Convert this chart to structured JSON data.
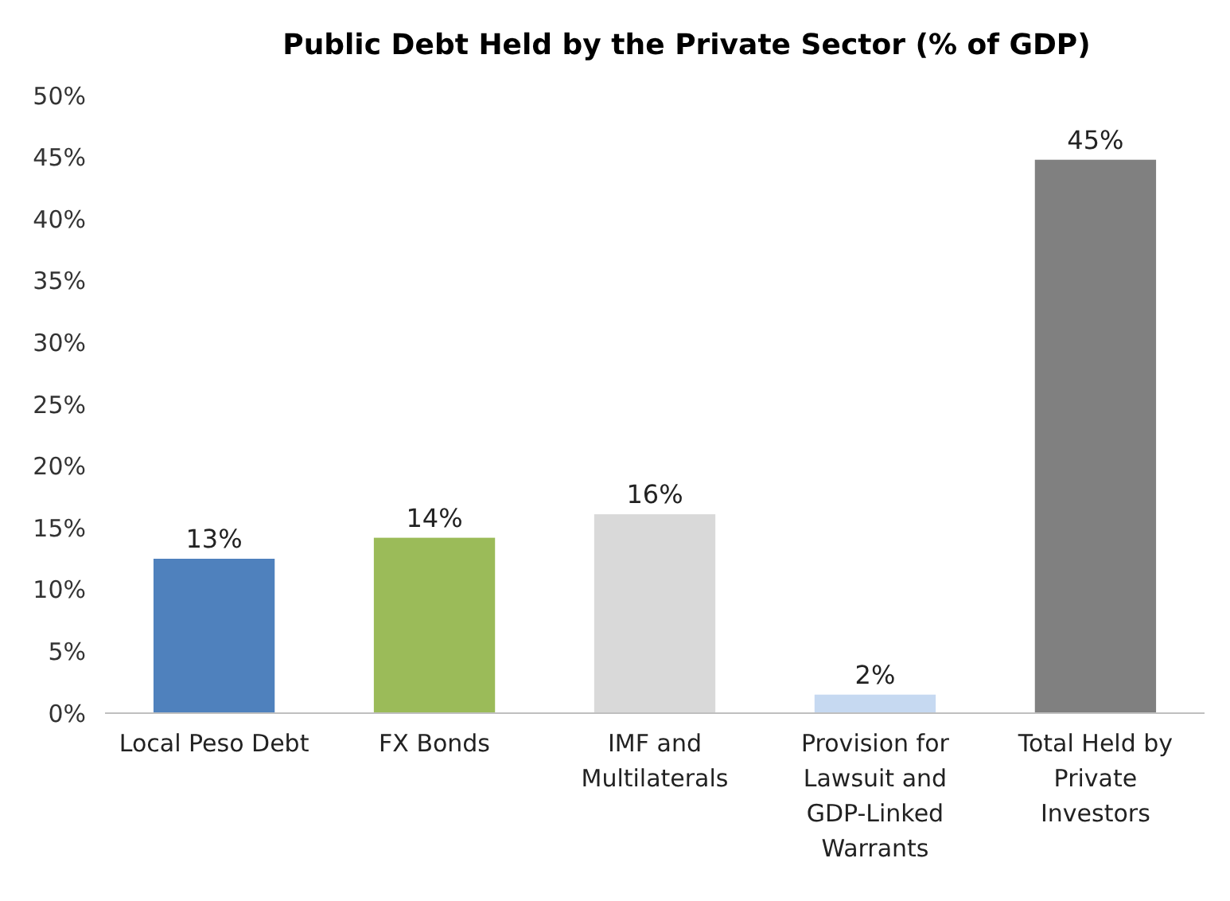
{
  "chart_data": {
    "type": "bar",
    "title": "Public Debt Held by the Private Sector (% of GDP)",
    "categories": [
      "Local Peso Debt",
      "FX Bonds",
      "IMF and Multilaterals",
      "Provision for Lawsuit and GDP-Linked Warrants",
      "Total Held by Private Investors"
    ],
    "values": [
      12.5,
      14.2,
      16.1,
      1.5,
      44.8
    ],
    "colors": [
      "#4f81bd",
      "#9bbb59",
      "#d9d9d9",
      "#c6d9f1",
      "#808080"
    ],
    "value_labels": [
      "13%",
      "14%",
      "16%",
      "2%",
      "45%"
    ],
    "ylim": [
      0,
      50
    ],
    "yticks": [
      {
        "value": 0,
        "label": "0%"
      },
      {
        "value": 5,
        "label": "5%"
      },
      {
        "value": 10,
        "label": "10%"
      },
      {
        "value": 15,
        "label": "15%"
      },
      {
        "value": 20,
        "label": "20%"
      },
      {
        "value": 25,
        "label": "25%"
      },
      {
        "value": 30,
        "label": "30%"
      },
      {
        "value": 35,
        "label": "35%"
      },
      {
        "value": 40,
        "label": "40%"
      },
      {
        "value": 45,
        "label": "45%"
      },
      {
        "value": 50,
        "label": "50%"
      }
    ],
    "grid": false
  }
}
